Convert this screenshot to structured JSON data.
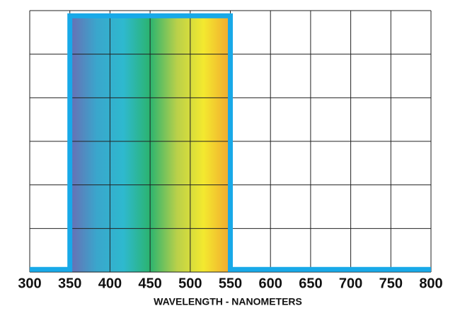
{
  "chart_data": {
    "type": "line",
    "x_label": "WAVELENGTH - NANOMETERS",
    "x": [
      300,
      350,
      350,
      550,
      550,
      800
    ],
    "values": [
      1,
      1,
      98,
      98,
      1,
      1
    ],
    "color": "#18a9e8",
    "fill_colors": [
      "#6a6db4",
      "#3aa6cc",
      "#2eb9cf",
      "#2bb46f",
      "#b9d04a",
      "#f3e92f",
      "#f2a72f"
    ],
    "xlim": [
      300,
      800
    ],
    "xticks": [
      300,
      350,
      400,
      450,
      500,
      550,
      600,
      650,
      700,
      750,
      800
    ],
    "ylim": [
      0,
      100
    ],
    "yticks": [
      0,
      16.67,
      33.33,
      50,
      66.67,
      83.33,
      100
    ],
    "show_ytick_labels": false,
    "grid": true
  }
}
